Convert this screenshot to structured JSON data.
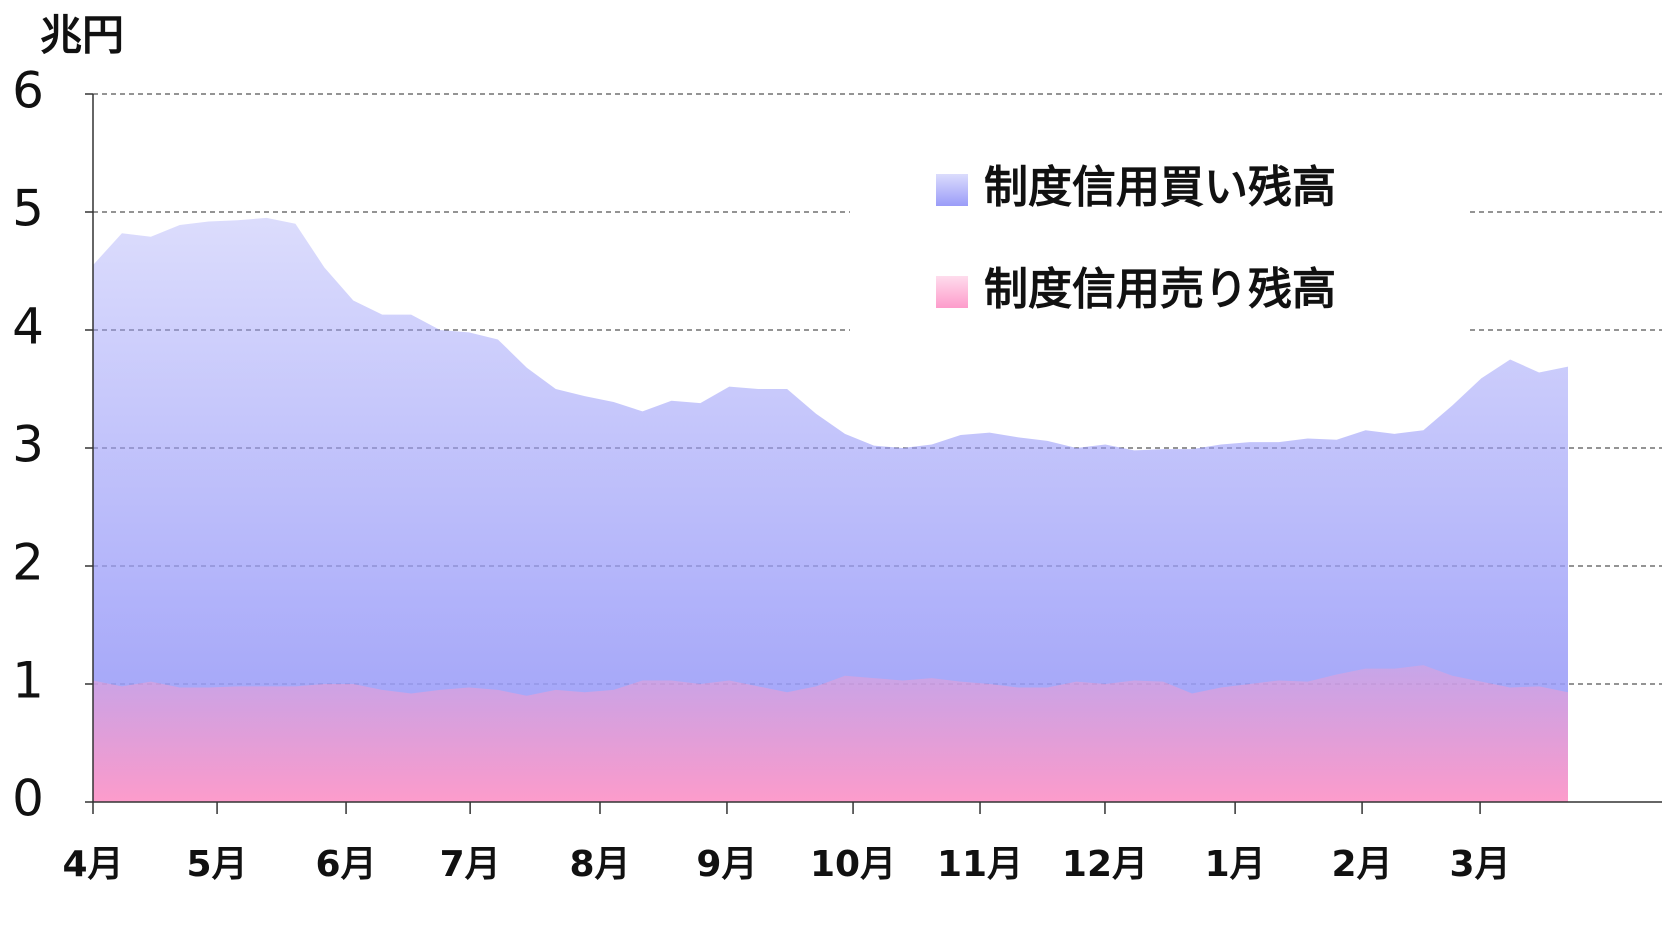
{
  "chart_data": {
    "type": "area",
    "y_label": "兆円",
    "x": [
      0,
      1,
      2,
      3,
      4,
      5,
      6,
      7,
      8,
      9,
      10,
      11,
      12,
      13,
      14,
      15,
      16,
      17,
      18,
      19,
      20,
      21,
      22,
      23,
      24,
      25,
      26,
      27,
      28,
      29,
      30,
      31,
      32,
      33,
      34,
      35,
      36,
      37,
      38,
      39,
      40,
      41,
      42,
      43,
      44,
      45,
      46,
      47,
      48,
      49,
      50,
      51
    ],
    "series": [
      {
        "name": "制度信用買い残高",
        "color": "#9a9cf8",
        "values": [
          4.55,
          4.82,
          4.79,
          4.89,
          4.92,
          4.93,
          4.95,
          4.9,
          4.53,
          4.25,
          4.13,
          4.13,
          4.0,
          3.98,
          3.92,
          3.68,
          3.5,
          3.44,
          3.39,
          3.31,
          3.4,
          3.38,
          3.52,
          3.5,
          3.5,
          3.29,
          3.12,
          3.02,
          3.0,
          3.03,
          3.11,
          3.13,
          3.09,
          3.06,
          3.0,
          3.03,
          2.98,
          2.99,
          2.99,
          3.03,
          3.05,
          3.05,
          3.08,
          3.07,
          3.15,
          3.12,
          3.15,
          3.36,
          3.59,
          3.75,
          3.64,
          3.69
        ]
      },
      {
        "name": "制度信用売り残高",
        "color": "#fd9ccb",
        "values": [
          1.03,
          0.98,
          1.02,
          0.97,
          0.97,
          0.98,
          0.98,
          0.98,
          1.0,
          1.0,
          0.95,
          0.92,
          0.95,
          0.97,
          0.95,
          0.9,
          0.95,
          0.93,
          0.95,
          1.03,
          1.03,
          1.0,
          1.03,
          0.98,
          0.93,
          0.98,
          1.07,
          1.05,
          1.03,
          1.05,
          1.02,
          1.0,
          0.97,
          0.97,
          1.02,
          1.0,
          1.03,
          1.02,
          0.92,
          0.97,
          1.0,
          1.03,
          1.02,
          1.08,
          1.13,
          1.13,
          1.16,
          1.07,
          1.02,
          0.97,
          0.98,
          0.93
        ]
      }
    ],
    "xlim": [
      0,
      51
    ],
    "xticks": [
      {
        "value": 0,
        "label": "4月"
      },
      {
        "value": 4.29,
        "label": "5月"
      },
      {
        "value": 8.75,
        "label": "6月"
      },
      {
        "value": 13.04,
        "label": "7月"
      },
      {
        "value": 17.53,
        "label": "8月"
      },
      {
        "value": 21.92,
        "label": "9月"
      },
      {
        "value": 26.28,
        "label": "10月"
      },
      {
        "value": 30.67,
        "label": "11月"
      },
      {
        "value": 34.99,
        "label": "12月"
      },
      {
        "value": 39.49,
        "label": "1月"
      },
      {
        "value": 43.88,
        "label": "2月"
      },
      {
        "value": 47.96,
        "label": "3月"
      }
    ],
    "ylim": [
      0,
      6
    ],
    "yticks": [
      0,
      1,
      2,
      3,
      4,
      5,
      6
    ],
    "grid": true,
    "legend": "upper right"
  }
}
